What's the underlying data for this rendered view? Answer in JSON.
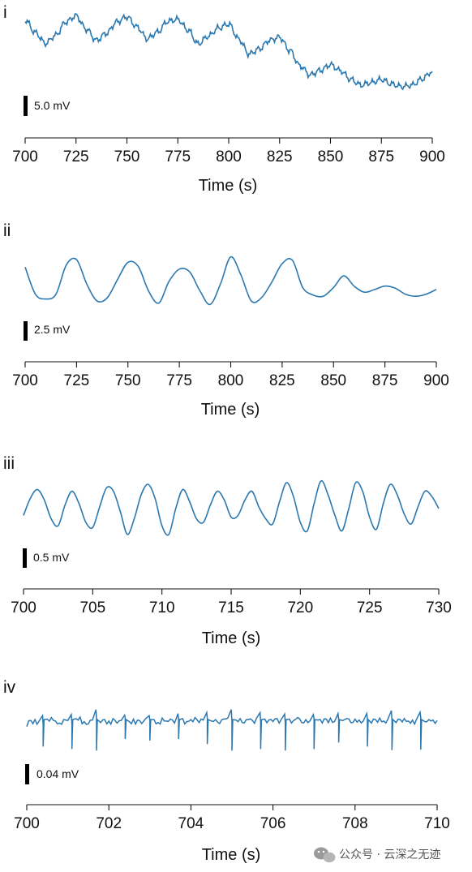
{
  "chart_data": [
    {
      "type": "line",
      "panel_label": "i",
      "xlabel": "Time (s)",
      "xlim": [
        700,
        900
      ],
      "xticks": [
        700,
        725,
        750,
        775,
        800,
        825,
        850,
        875,
        900
      ],
      "scale_bar": {
        "value": 5.0,
        "label": "5.0 mV"
      },
      "ylim": [
        -4,
        14
      ],
      "series": [
        {
          "color": "#2b78b0",
          "x": [
            700,
            705,
            710,
            715,
            720,
            725,
            730,
            735,
            740,
            745,
            750,
            755,
            760,
            765,
            770,
            775,
            780,
            785,
            790,
            795,
            800,
            805,
            810,
            815,
            820,
            825,
            830,
            835,
            840,
            845,
            850,
            855,
            860,
            865,
            870,
            875,
            880,
            885,
            890,
            895,
            900
          ],
          "y": [
            12.0,
            9.5,
            7.4,
            9.0,
            11.6,
            12.8,
            10.2,
            8.0,
            9.4,
            11.6,
            12.6,
            10.6,
            8.3,
            9.6,
            11.7,
            12.1,
            10.0,
            7.3,
            8.8,
            10.4,
            11.2,
            8.2,
            5.3,
            6.3,
            8.0,
            8.6,
            6.0,
            3.0,
            1.2,
            2.1,
            3.2,
            2.0,
            0.3,
            -0.8,
            -0.3,
            0.3,
            -0.6,
            -1.1,
            -0.8,
            0.4,
            1.9
          ]
        }
      ]
    },
    {
      "type": "line",
      "panel_label": "ii",
      "xlabel": "Time (s)",
      "xlim": [
        700,
        900
      ],
      "xticks": [
        700,
        725,
        750,
        775,
        800,
        825,
        850,
        875,
        900
      ],
      "scale_bar": {
        "value": 2.5,
        "label": "2.5 mV"
      },
      "ylim": [
        -6,
        5
      ],
      "series": [
        {
          "color": "#2b78b0",
          "x": [
            700,
            705,
            710,
            715,
            720,
            725,
            730,
            735,
            740,
            745,
            750,
            755,
            760,
            765,
            770,
            775,
            780,
            785,
            790,
            795,
            800,
            805,
            810,
            815,
            820,
            825,
            830,
            835,
            840,
            845,
            850,
            855,
            860,
            865,
            870,
            875,
            880,
            885,
            890,
            895,
            900
          ],
          "y": [
            1.5,
            -2.5,
            -3.2,
            -2.5,
            1.8,
            2.6,
            -1.0,
            -3.5,
            -3.0,
            -0.3,
            2.2,
            1.6,
            -2.0,
            -3.8,
            -0.6,
            1.2,
            0.8,
            -2.0,
            -4.0,
            -1.0,
            3.0,
            0.3,
            -3.5,
            -3.0,
            -0.7,
            2.0,
            2.5,
            -1.5,
            -2.6,
            -2.8,
            -1.5,
            0.2,
            -1.3,
            -2.2,
            -1.8,
            -1.3,
            -1.6,
            -2.5,
            -2.8,
            -2.5,
            -1.8
          ]
        }
      ]
    },
    {
      "type": "line",
      "panel_label": "iii",
      "xlabel": "Time (s)",
      "xlim": [
        700,
        730
      ],
      "xticks": [
        700,
        705,
        710,
        715,
        720,
        725,
        730
      ],
      "scale_bar": {
        "value": 0.5,
        "label": "0.5 mV"
      },
      "ylim": [
        -1.2,
        1.2
      ],
      "series": [
        {
          "color": "#2b78b0",
          "x": [
            700,
            700.5,
            701,
            701.5,
            702,
            702.5,
            703,
            703.5,
            704,
            704.5,
            705,
            705.5,
            706,
            706.5,
            707,
            707.5,
            708,
            708.5,
            709,
            709.5,
            710,
            710.5,
            711,
            711.5,
            712,
            712.5,
            713,
            713.5,
            714,
            714.5,
            715,
            715.5,
            716,
            716.5,
            717,
            717.5,
            718,
            718.5,
            719,
            719.5,
            720,
            720.5,
            721,
            721.5,
            722,
            722.5,
            723,
            723.5,
            724,
            724.5,
            725,
            725.5,
            726,
            726.5,
            727,
            727.5,
            728,
            728.5,
            729,
            729.5,
            730
          ],
          "y": [
            -0.15,
            0.35,
            0.6,
            0.3,
            -0.25,
            -0.45,
            0.15,
            0.55,
            0.2,
            -0.35,
            -0.5,
            0.1,
            0.65,
            0.55,
            -0.05,
            -0.7,
            -0.25,
            0.45,
            0.75,
            0.35,
            -0.45,
            -0.7,
            0.05,
            0.6,
            0.25,
            -0.25,
            -0.35,
            0.15,
            0.55,
            0.3,
            -0.2,
            -0.15,
            0.3,
            0.55,
            0.1,
            -0.25,
            -0.4,
            0.25,
            0.8,
            0.4,
            -0.35,
            -0.6,
            0.2,
            0.85,
            0.45,
            -0.15,
            -0.6,
            0.05,
            0.8,
            0.55,
            -0.2,
            -0.55,
            0.2,
            0.75,
            0.45,
            -0.1,
            -0.4,
            0.1,
            0.55,
            0.4,
            0.05
          ]
        }
      ]
    },
    {
      "type": "line",
      "panel_label": "iv",
      "xlabel": "Time (s)",
      "xlim": [
        700,
        710
      ],
      "xticks": [
        700,
        702,
        704,
        706,
        708,
        710
      ],
      "scale_bar": {
        "value": 0.04,
        "label": "0.04 mV"
      },
      "ylim": [
        -0.09,
        0.035
      ],
      "series": [
        {
          "color": "#2b78b0",
          "baseline_x": [
            700,
            700.1,
            700.2,
            700.3,
            700.4,
            700.5,
            700.6,
            700.7,
            700.8,
            700.9,
            701.0,
            701.1,
            701.2,
            701.3,
            701.4,
            701.5,
            701.6,
            701.7,
            701.8,
            701.9,
            702.0,
            702.1,
            702.2,
            702.3,
            702.4,
            702.5,
            702.6,
            702.7,
            702.8,
            702.9,
            703.0,
            703.1,
            703.2,
            703.3,
            703.4,
            703.5,
            703.6,
            703.7,
            703.8,
            703.9,
            704.0,
            704.1,
            704.2,
            704.3,
            704.4,
            704.5,
            704.6,
            704.7,
            704.8,
            704.9,
            705.0,
            705.1,
            705.2,
            705.3,
            705.4,
            705.5,
            705.6,
            705.7,
            705.8,
            705.9,
            706.0,
            706.1,
            706.2,
            706.3,
            706.4,
            706.5,
            706.6,
            706.7,
            706.8,
            706.9,
            707.0,
            707.1,
            707.2,
            707.3,
            707.4,
            707.5,
            707.6,
            707.7,
            707.8,
            707.9,
            708.0,
            708.1,
            708.2,
            708.3,
            708.4,
            708.5,
            708.6,
            708.7,
            708.8,
            708.9,
            709.0,
            709.1,
            709.2,
            709.3,
            709.4,
            709.5,
            709.6,
            709.7,
            709.8,
            709.9,
            710.0
          ],
          "baseline_y": [
            -0.01,
            0.002,
            0.004,
            0.001,
            -0.006,
            0.005,
            0.008,
            0.001,
            -0.003,
            0.004,
            0.002,
            -0.004,
            0.006,
            0.009,
            0.0,
            -0.005,
            0.003,
            0.007,
            -0.002,
            0.004,
            0.001,
            0.006,
            -0.003,
            0.002,
            0.008,
            0.0,
            0.005,
            0.003,
            -0.004,
            0.006,
            0.002,
            0.004,
            -0.002,
            0.007,
            0.001,
            0.005,
            -0.003,
            0.003,
            0.006,
            0.0,
            0.004,
            0.008,
            -0.002,
            0.003,
            0.006,
            0.001,
            0.004,
            -0.004,
            0.005,
            0.007,
            0.0,
            0.003,
            0.006,
            -0.003,
            0.004,
            0.002,
            0.007,
            -0.001,
            0.005,
            0.003,
            0.0,
            0.006,
            0.004,
            -0.003,
            0.005,
            0.002,
            0.008,
            -0.002,
            0.004,
            0.001,
            0.006,
            0.003,
            -0.003,
            0.005,
            0.007,
            0.0,
            0.004,
            0.002,
            0.006,
            -0.002,
            0.005,
            0.003,
            0.001,
            0.006,
            -0.003,
            0.004,
            0.007,
            0.001,
            0.005,
            0.002,
            -0.002,
            0.004,
            0.006,
            0.001,
            0.003,
            0.005,
            0.008,
            0.0,
            0.004,
            0.003,
            0.002
          ],
          "spikes_x": [
            700.4,
            701.1,
            701.7,
            702.4,
            703.0,
            703.7,
            704.4,
            705.0,
            705.7,
            706.3,
            707.0,
            707.6,
            708.3,
            708.9,
            709.6
          ],
          "spikes_y": [
            -0.05,
            -0.055,
            -0.058,
            -0.035,
            -0.038,
            -0.035,
            -0.045,
            -0.058,
            -0.055,
            -0.058,
            -0.055,
            -0.042,
            -0.05,
            -0.057,
            -0.056
          ],
          "spikes_peak_y": [
            0.012,
            0.014,
            0.024,
            0.013,
            0.012,
            0.016,
            0.018,
            0.024,
            0.018,
            0.015,
            0.014,
            0.016,
            0.016,
            0.022,
            0.019
          ]
        }
      ]
    }
  ],
  "watermark": {
    "icon": "wechat-icon",
    "text": "公众号 · 云深之无迹"
  }
}
